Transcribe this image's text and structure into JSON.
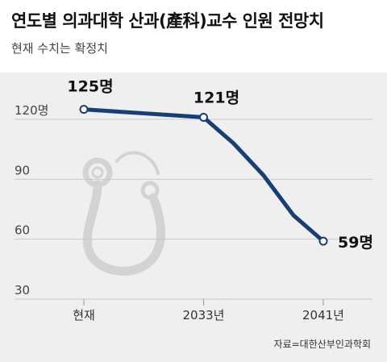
{
  "title": "연도별 의과대학 산과(產科)교수 인원 전망치",
  "subtitle": "현재 수치는 확정치",
  "source": "자료=대한산부인과학회",
  "colors": {
    "line": "#173f75",
    "background": "#eeefee",
    "grid": "#c8c8c8",
    "decoration": "#d2d3d2"
  },
  "decoration_icon": "stethoscope-icon",
  "chart_data": {
    "type": "line",
    "x": [
      0,
      1,
      2,
      3,
      4,
      5,
      6,
      7,
      8
    ],
    "x_tick_labels": [
      {
        "x": 0,
        "label": "현재"
      },
      {
        "x": 4,
        "label": "2033년"
      },
      {
        "x": 8,
        "label": "2041년"
      }
    ],
    "series": [
      {
        "values": [
          125,
          124,
          123,
          122,
          121,
          108,
          92,
          72,
          59
        ]
      }
    ],
    "y_ticks": [
      120,
      90,
      60,
      30
    ],
    "y_tick_labels": [
      "120명",
      "90",
      "60",
      "30"
    ],
    "ylim": [
      30,
      130
    ],
    "grid": true,
    "annotations": [
      {
        "index": 0,
        "text": "125명"
      },
      {
        "index": 4,
        "text": "121명"
      },
      {
        "index": 8,
        "text": "59명"
      }
    ]
  }
}
